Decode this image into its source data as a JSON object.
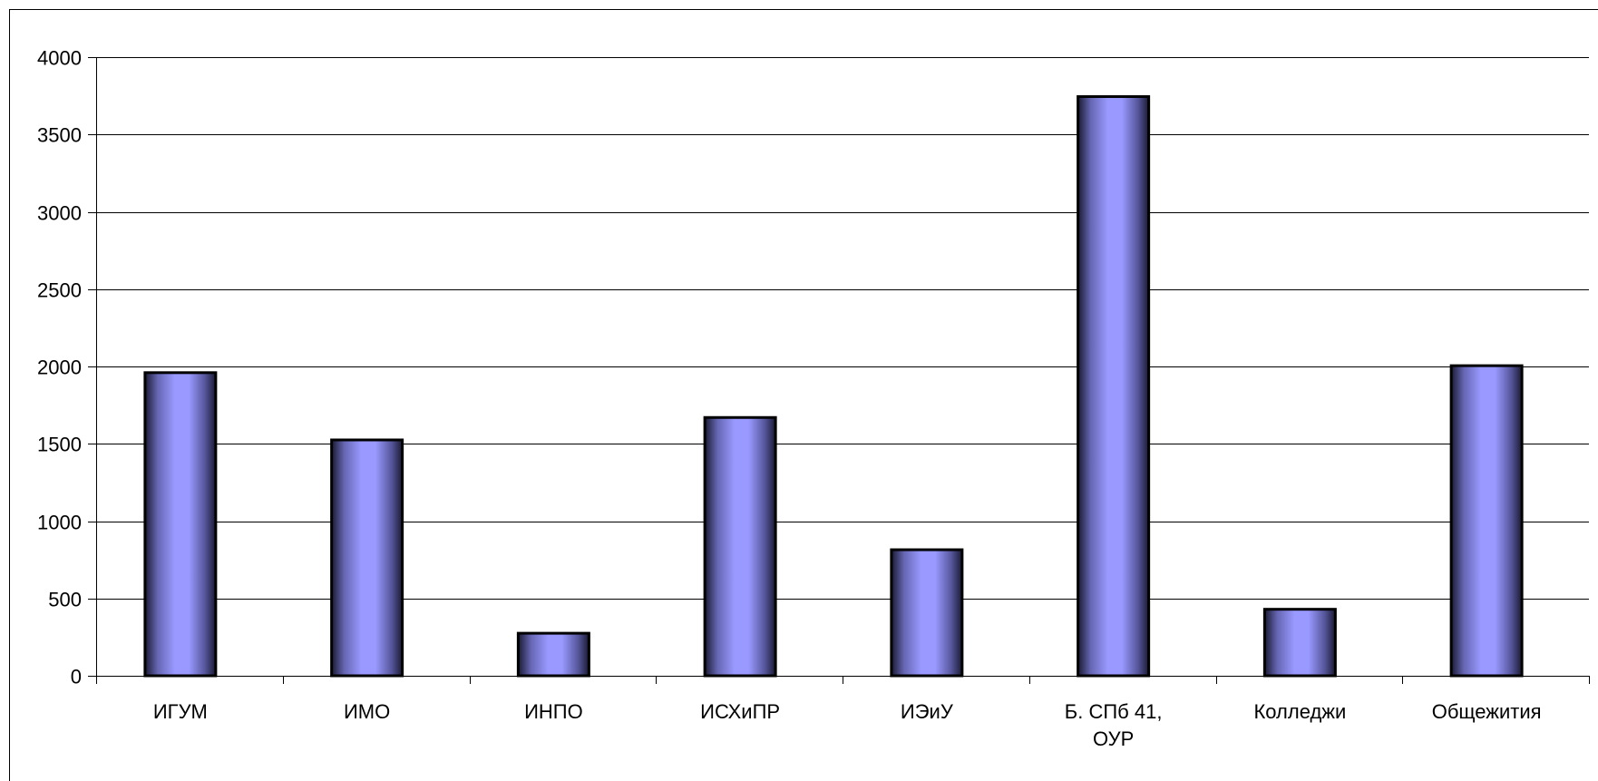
{
  "chart_data": {
    "type": "bar",
    "title": "",
    "xlabel": "",
    "ylabel": "",
    "categories": [
      "ИГУМ",
      "ИМО",
      "ИНПО",
      "ИСХиПР",
      "ИЭиУ",
      "Б. СПб 41, ОУР",
      "Колледжи",
      "Общежития"
    ],
    "category_lines": [
      [
        "ИГУМ"
      ],
      [
        "ИМО"
      ],
      [
        "ИНПО"
      ],
      [
        "ИСХиПР"
      ],
      [
        "ИЭиУ"
      ],
      [
        "Б. СПб 41,",
        "ОУР"
      ],
      [
        "Колледжи"
      ],
      [
        "Общежития"
      ]
    ],
    "values": [
      1960,
      1525,
      275,
      1670,
      815,
      3745,
      430,
      2005
    ],
    "ylim": [
      0,
      4000
    ],
    "yticks": [
      0,
      500,
      1000,
      1500,
      2000,
      2500,
      3000,
      3500,
      4000
    ],
    "grid": true,
    "legend": "none",
    "colors": {
      "bar_center": "#9999ff",
      "bar_edge": "#1a1a33",
      "bar_outline": "#000000",
      "grid": "#000000"
    }
  }
}
